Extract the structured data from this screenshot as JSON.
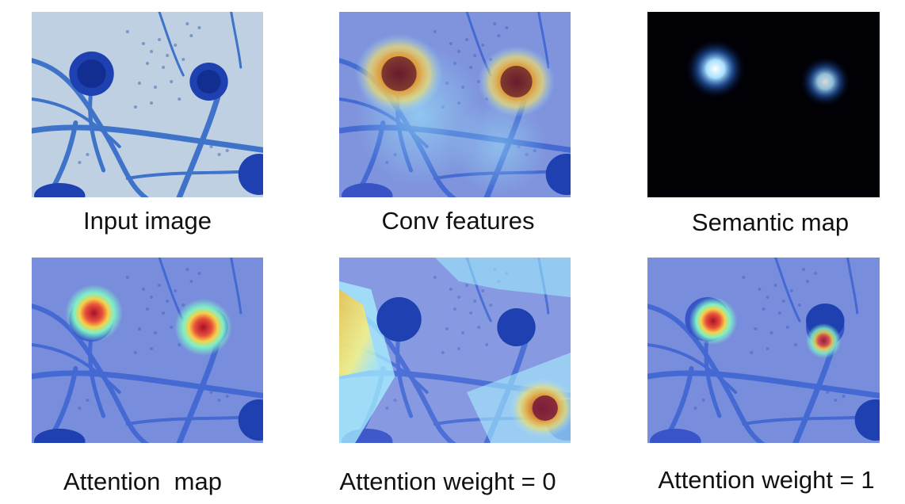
{
  "panels": [
    {
      "id": "input-image",
      "caption": "Input image"
    },
    {
      "id": "conv-features",
      "caption": "Conv features"
    },
    {
      "id": "semantic-map",
      "caption": "Semantic map"
    },
    {
      "id": "attention-map",
      "caption": "Attention  map"
    },
    {
      "id": "attention-weight-0",
      "caption": "Attention weight = 0"
    },
    {
      "id": "attention-weight-1",
      "caption": "Attention weight = 1"
    }
  ],
  "colors": {
    "micrograph_background": "#b4c8df",
    "stain_blue": "#2a4fb8",
    "heatmap_blue": "#4a62d8",
    "heatmap_red": "#b01a2a",
    "semantic_background": "#000000",
    "semantic_glow": "#a0dcff"
  }
}
